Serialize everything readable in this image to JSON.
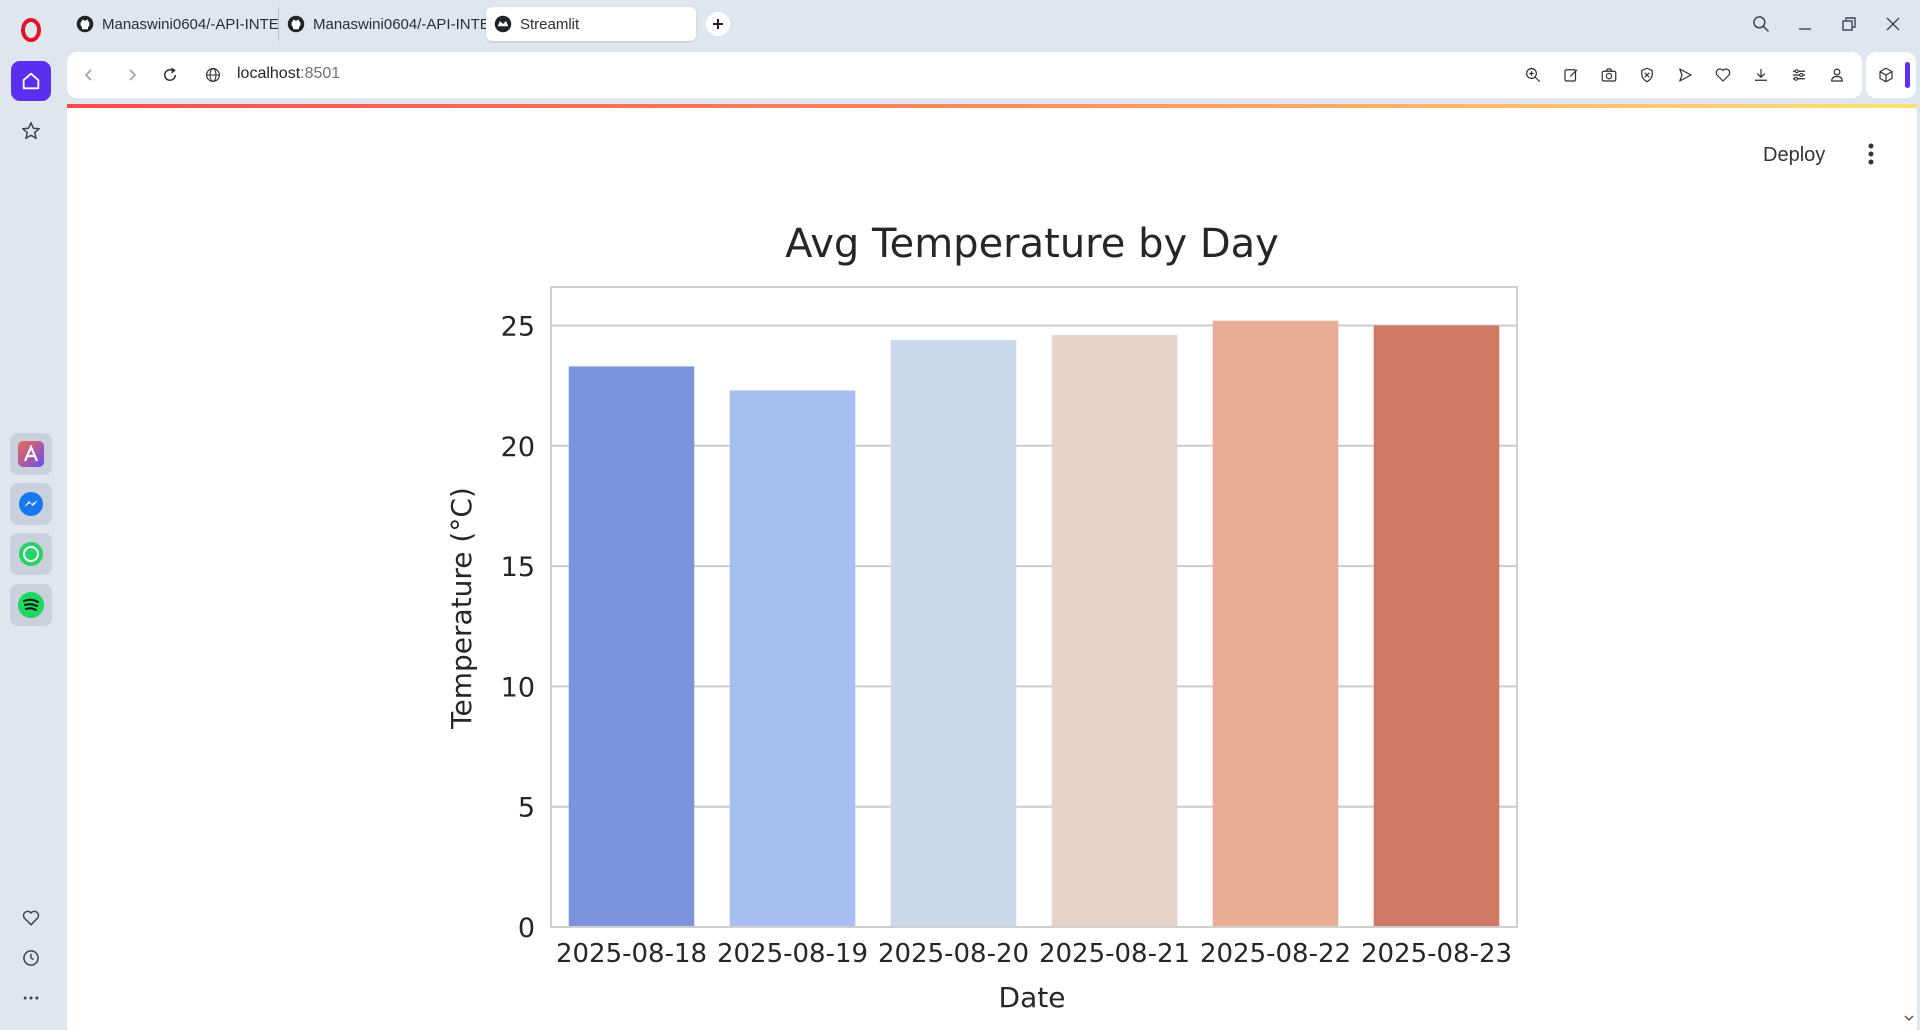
{
  "browser": {
    "tabs": [
      {
        "label": "Manaswini0604/-API-INTE",
        "icon": "github-icon"
      },
      {
        "label": "Manaswini0604/-API-INTE",
        "icon": "github-icon"
      },
      {
        "label": "Streamlit",
        "icon": "streamlit-icon",
        "active": true
      }
    ],
    "address": {
      "host": "localhost",
      "port": ":8501"
    }
  },
  "app": {
    "deploy_label": "Deploy"
  },
  "chart_data": {
    "type": "bar",
    "title": "Avg Temperature by Day",
    "xlabel": "Date",
    "ylabel": "Temperature (°C)",
    "categories": [
      "2025-08-18",
      "2025-08-19",
      "2025-08-20",
      "2025-08-21",
      "2025-08-22",
      "2025-08-23"
    ],
    "values": [
      23.3,
      22.3,
      24.4,
      24.6,
      25.2,
      25.0
    ],
    "colors": [
      "#7b94dd",
      "#a6bef2",
      "#cbd8ec",
      "#e8d2c7",
      "#e9ac95",
      "#d07866"
    ],
    "ylim": [
      0,
      26.6
    ],
    "yticks": [
      0,
      5,
      10,
      15,
      20,
      25
    ],
    "grid": "horizontal"
  }
}
